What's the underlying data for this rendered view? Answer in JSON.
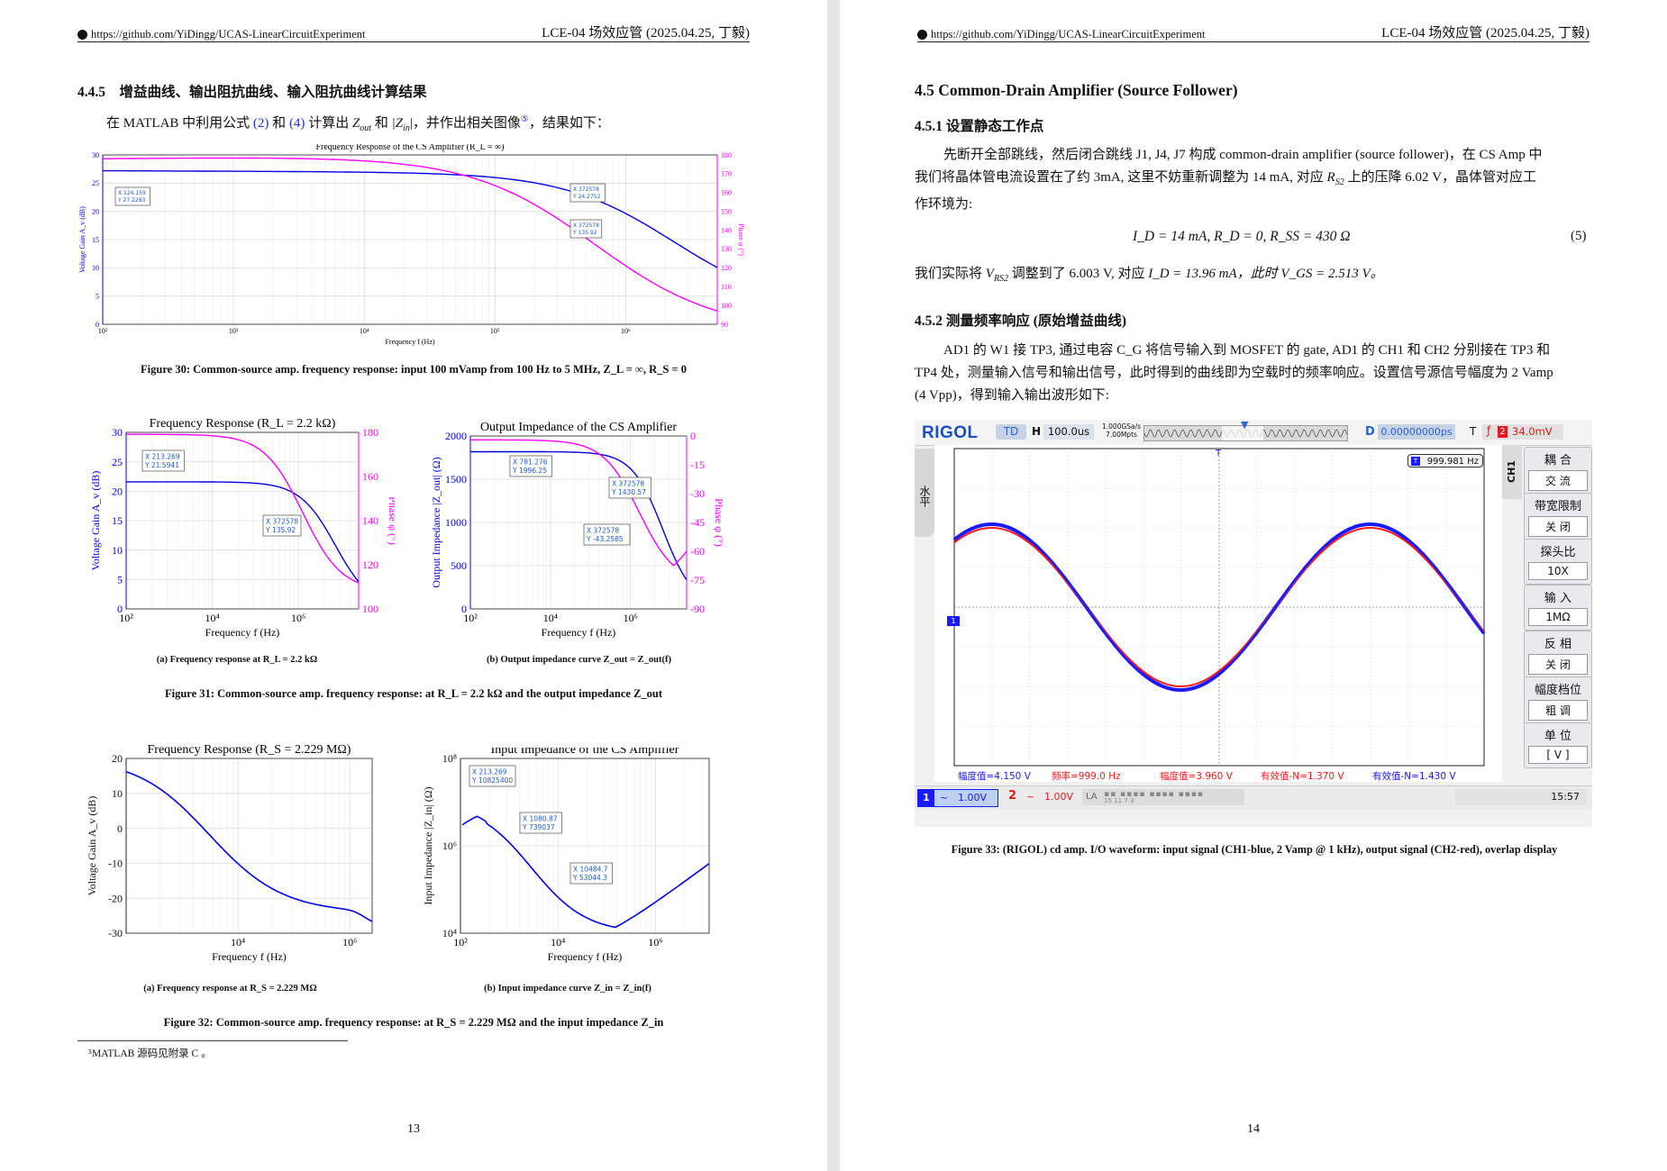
{
  "header": {
    "url": "https://github.com/YiDingg/UCAS-LinearCircuitExperiment",
    "doc_title": "LCE-04 场效应管 (2025.04.25, 丁毅)"
  },
  "page13": {
    "section_number": "4.4.5",
    "section_title": "增益曲线、输出阻抗曲线、输入阻抗曲线计算结果",
    "para_prefix": "在 MATLAB 中利用公式",
    "para_ref1": "(2)",
    "para_and": "和",
    "para_ref2": "(4)",
    "para_mid": "计算出",
    "zout": "Z",
    "zout_sub": "out",
    "para_and2": "和",
    "zin_abs": "|Z",
    "zin_sub": "in",
    "para_tail": "|，并作出相关图像",
    "footnote_mark": "⑤",
    "para_end": "，结果如下：",
    "fig30_caption": "Figure 30: Common-source amp. frequency response: input 100 mVamp from 100 Hz to 5 MHz, Z_L = ∞, R_S = 0",
    "fig31a_caption": "(a) Frequency response at R_L = 2.2 kΩ",
    "fig31b_caption": "(b) Output impedance curve Z_out = Z_out(f)",
    "fig31_caption": "Figure 31: Common-source amp. frequency response: at R_L = 2.2 kΩ and the output impedance Z_out",
    "fig32a_caption": "(a) Frequency response at R_S = 2.229 MΩ",
    "fig32b_caption": "(b) Input impedance curve Z_in = Z_in(f)",
    "fig32_caption": "Figure 32: Common-source amp. frequency response: at R_S = 2.229 MΩ and the input impedance Z_in",
    "footnote": "⁵MATLAB 源码见附录 C 。",
    "page_number": "13"
  },
  "page14": {
    "section_45": "4.5   Common-Drain Amplifier (Source Follower)",
    "section_451": "4.5.1   设置静态工作点",
    "p1_line1": "先断开全部跳线，然后闭合跳线 J1, J4, J7 构成 common-drain amplifier (source follower)，在 CS Amp 中",
    "p1_line2a": "我们将晶体管电流设置在了约 3mA, 这里不妨重新调整为 14 mA, 对应",
    "p1_line2b": "R",
    "p1_line2c": "S2",
    "p1_line2d": "上的压降 6.02 V，晶体管对应工",
    "p1_line3": "作环境为:",
    "equation": "I_D = 14 mA,   R_D = 0,  R_SS = 430 Ω",
    "eq_number": "(5)",
    "p2a": "我们实际将",
    "p2b": "V",
    "p2c": "RS2",
    "p2d": "调整到了 6.003 V, 对应",
    "p2e": "I_D = 13.96 mA，此时",
    "p2f": "V_GS = 2.513 V。",
    "section_452": "4.5.2   测量频率响应 (原始增益曲线)",
    "p3_line1": "AD1 的 W1 接 TP3, 通过电容 C_G 将信号输入到 MOSFET 的 gate, AD1 的 CH1 和 CH2 分别接在 TP3 和",
    "p3_line2": "TP4 处，测量输入信号和输出信号，此时得到的曲线即为空载时的频率响应。设置信号源信号幅度为 2 Vamp",
    "p3_line3": "(4 Vpp)，得到输入输出波形如下:",
    "fig33_caption": "Figure 33: (RIGOL) cd amp. I/O waveform: input signal (CH1-blue, 2 Vamp @ 1 kHz), output signal (CH2-red), overlap display",
    "page_number": "14"
  },
  "scope": {
    "brand": "RIGOL",
    "mode": "TD",
    "h_label": "H",
    "timebase": "100.0us",
    "sample_rate": "1.000GSa/s",
    "points": "7.00Mpts",
    "d_label": "D",
    "delay": "0.00000000ps",
    "t_label": "T",
    "trig_ch": "2",
    "trig_level": "34.0mV",
    "left_tab": "水平",
    "freq_counter": "999.981 Hz",
    "ch_tab": "CH1",
    "menu": [
      {
        "title": "耦 合",
        "value": "交 流"
      },
      {
        "title": "带宽限制",
        "value": "关 闭"
      },
      {
        "title": "探头比",
        "value": "10X"
      },
      {
        "title": "输 入",
        "value": "1MΩ"
      },
      {
        "title": "反 相",
        "value": "关 闭"
      },
      {
        "title": "幅度档位",
        "value": "粗 调"
      },
      {
        "title": "单 位",
        "value": "[ V ]"
      }
    ],
    "measurements": [
      {
        "text": "幅度值=4.150 V",
        "color": "#1a1aff"
      },
      {
        "text": "频率=999.0 Hz",
        "color": "#ff1a1a"
      },
      {
        "text": "幅度值=3.960 V",
        "color": "#ff1a1a"
      },
      {
        "text": "有效值-N=1.370 V",
        "color": "#ff1a1a"
      },
      {
        "text": "有效值-N=1.430 V",
        "color": "#1a1aff"
      }
    ],
    "ch1_num": "1",
    "ch1_scale": "1.00V",
    "ch2_num": "2",
    "ch2_scale": "1.00V",
    "la_label": "LA",
    "la_digits": "15   11   7   3",
    "time": "15:57",
    "marker_1": "1"
  },
  "plots": {
    "fig30": {
      "title": "Frequency Response of the CS Amplifier (R_L = ∞)",
      "ylabel": "Voltage Gain A_v (dB)",
      "y2label": "Phase φ (°)",
      "xlabel": "Frequency f (Hz)",
      "yticks": [
        "0",
        "5",
        "10",
        "15",
        "20",
        "25",
        "30"
      ],
      "y2ticks": [
        "90",
        "100",
        "110",
        "120",
        "130",
        "140",
        "150",
        "160",
        "170",
        "180"
      ],
      "xticks": [
        "10²",
        "10³",
        "10⁴",
        "10⁵",
        "10⁶"
      ],
      "dt1": [
        "X 124.159",
        "Y 27.2283"
      ],
      "dt2": [
        "X 372578",
        "Y 24.2752"
      ],
      "dt3": [
        "X 372578",
        "Y 135.92"
      ]
    },
    "fig31a": {
      "title": "Frequency Response (R_L = 2.2 kΩ)",
      "ylabel": "Voltage Gain A_v (dB)",
      "y2label": "Phase φ (°)",
      "xlabel": "Frequency f (Hz)",
      "yticks": [
        "0",
        "5",
        "10",
        "15",
        "20",
        "25",
        "30"
      ],
      "y2ticks": [
        "100",
        "120",
        "140",
        "160",
        "180"
      ],
      "xticks": [
        "10²",
        "10⁴",
        "10⁶"
      ],
      "dt1": [
        "X 213.269",
        "Y 21.5941"
      ],
      "dt2": [
        "X 372578",
        "Y 135.92"
      ]
    },
    "fig31b": {
      "title": "Output Impedance of the CS Amplifier",
      "ylabel": "Output Impedance |Z_out| (Ω)",
      "y2label": "Phase φ (°)",
      "xlabel": "Frequency f (Hz)",
      "yticks": [
        "0",
        "500",
        "1000",
        "1500",
        "2000"
      ],
      "y2ticks": [
        "0",
        "-15",
        "-30",
        "-45",
        "-60",
        "-75",
        "-90"
      ],
      "xticks": [
        "10²",
        "10⁴",
        "10⁶"
      ],
      "dt1": [
        "X 781.276",
        "Y 1996.25"
      ],
      "dt2": [
        "X 372578",
        "Y 1430.57"
      ],
      "dt3": [
        "X 372578",
        "Y -43.2585"
      ]
    },
    "fig32a": {
      "title": "Frequency Response (R_S = 2.229 MΩ)",
      "ylabel": "Voltage Gain A_v (dB)",
      "xlabel": "Frequency f (Hz)",
      "yticks": [
        "20",
        "10",
        "0",
        "-10",
        "-20",
        "-30"
      ],
      "xticks": [
        "10⁴",
        "10⁶"
      ]
    },
    "fig32b": {
      "title": "Input Impedance of the CS Amplifier",
      "ylabel": "Input Impedance |Z_in| (Ω)",
      "xlabel": "Frequency f (Hz)",
      "yticks": [
        "10⁸",
        "10⁶",
        "10⁴"
      ],
      "xticks": [
        "10²",
        "10⁴",
        "10⁶"
      ],
      "dt1": [
        "X 213.269",
        "Y 10825400"
      ],
      "dt2": [
        "X 1080.87",
        "Y 739037"
      ],
      "dt3": [
        "X 10484.7",
        "Y 53044.3"
      ]
    }
  },
  "colors": {
    "gain": "#0000e6",
    "phase": "#ff00ff",
    "link": "#2330c8",
    "scope_ch1": "#1a1aff",
    "scope_ch2": "#ff1a1a"
  }
}
